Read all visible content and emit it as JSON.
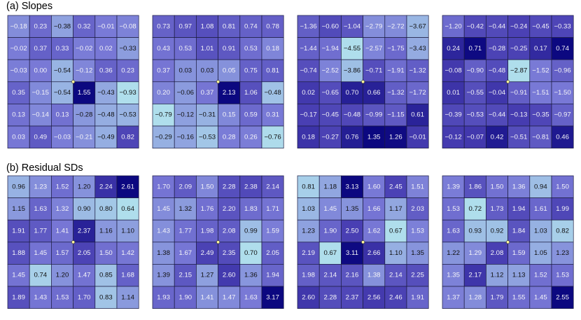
{
  "chart_data": [
    {
      "type": "heatmap",
      "title": "(a) Slopes",
      "panels": [
        {
          "values": [
            [
              "−0.18",
              "0.23",
              "−0.38",
              "0.32",
              "−0.01",
              "−0.08"
            ],
            [
              "−0.02",
              "0.37",
              "0.33",
              "−0.02",
              "0.02",
              "−0.33"
            ],
            [
              "−0.03",
              "0.00",
              "−0.54",
              "−0.12",
              "0.36",
              "0.23"
            ],
            [
              "0.35",
              "−0.15",
              "−0.54",
              "1.55",
              "−0.43",
              "−0.93"
            ],
            [
              "0.13",
              "−0.14",
              "0.13",
              "−0.28",
              "−0.48",
              "−0.53"
            ],
            [
              "0.03",
              "0.49",
              "−0.03",
              "−0.21",
              "−0.49",
              "0.82"
            ]
          ]
        },
        {
          "values": [
            [
              "0.73",
              "0.97",
              "1.08",
              "0.81",
              "0.74",
              "0.78"
            ],
            [
              "0.43",
              "0.53",
              "1.01",
              "0.91",
              "0.53",
              "0.18"
            ],
            [
              "0.37",
              "0.03",
              "0.03",
              "0.05",
              "0.75",
              "0.81"
            ],
            [
              "0.20",
              "−0.06",
              "0.37",
              "2.13",
              "1.06",
              "−0.48"
            ],
            [
              "−0.79",
              "−0.12",
              "−0.31",
              "0.15",
              "0.59",
              "0.31"
            ],
            [
              "−0.29",
              "−0.16",
              "−0.53",
              "0.28",
              "0.26",
              "−0.76"
            ]
          ]
        },
        {
          "values": [
            [
              "−1.36",
              "−0.60",
              "−1.04",
              "−2.79",
              "−2.72",
              "−3.67"
            ],
            [
              "−1.44",
              "−1.94",
              "−4.55",
              "−2.57",
              "−1.75",
              "−3.43"
            ],
            [
              "−0.74",
              "−2.52",
              "−3.86",
              "−0.71",
              "−1.91",
              "−1.32"
            ],
            [
              "0.02",
              "−0.65",
              "0.70",
              "0.66",
              "−1.32",
              "−1.72"
            ],
            [
              "−0.17",
              "−0.45",
              "−0.48",
              "−0.99",
              "−1.15",
              "0.61"
            ],
            [
              "0.18",
              "−0.27",
              "0.76",
              "1.35",
              "1.26",
              "−0.01"
            ]
          ]
        },
        {
          "values": [
            [
              "−1.20",
              "−0.42",
              "−0.44",
              "−0.24",
              "−0.45",
              "−0.33"
            ],
            [
              "0.24",
              "0.71",
              "−0.28",
              "−0.25",
              "0.17",
              "0.74"
            ],
            [
              "−0.08",
              "−0.90",
              "−0.48",
              "−2.87",
              "−1.52",
              "−0.96"
            ],
            [
              "0.01",
              "−0.55",
              "−0.04",
              "−0.91",
              "−1.51",
              "−1.50"
            ],
            [
              "−0.39",
              "−0.53",
              "−0.44",
              "−0.13",
              "−0.35",
              "−0.97"
            ],
            [
              "−0.12",
              "−0.07",
              "0.42",
              "−0.51",
              "−0.81",
              "0.46"
            ]
          ]
        }
      ]
    },
    {
      "type": "heatmap",
      "title": "(b) Residual SDs",
      "panels": [
        {
          "values": [
            [
              "0.96",
              "1.23",
              "1.52",
              "1.20",
              "2.24",
              "2.61"
            ],
            [
              "1.15",
              "1.63",
              "1.32",
              "0.90",
              "0.80",
              "0.64"
            ],
            [
              "1.91",
              "1.77",
              "1.41",
              "2.37",
              "1.16",
              "1.10"
            ],
            [
              "1.88",
              "1.45",
              "1.57",
              "2.05",
              "1.50",
              "1.42"
            ],
            [
              "1.45",
              "0.74",
              "1.20",
              "1.47",
              "0.85",
              "1.68"
            ],
            [
              "1.89",
              "1.43",
              "1.53",
              "1.70",
              "0.83",
              "1.14"
            ]
          ]
        },
        {
          "values": [
            [
              "1.70",
              "2.09",
              "1.50",
              "2.28",
              "2.38",
              "2.14"
            ],
            [
              "1.45",
              "1.32",
              "1.76",
              "2.20",
              "1.83",
              "1.71"
            ],
            [
              "1.43",
              "1.77",
              "1.98",
              "2.08",
              "0.99",
              "1.59"
            ],
            [
              "1.38",
              "1.67",
              "2.49",
              "2.35",
              "0.70",
              "2.05"
            ],
            [
              "1.39",
              "2.15",
              "1.27",
              "2.60",
              "1.36",
              "1.94"
            ],
            [
              "1.93",
              "1.90",
              "1.41",
              "1.47",
              "1.63",
              "3.17"
            ]
          ]
        },
        {
          "values": [
            [
              "0.81",
              "1.18",
              "3.13",
              "1.60",
              "2.45",
              "1.51"
            ],
            [
              "1.03",
              "1.45",
              "1.35",
              "1.66",
              "1.17",
              "2.03"
            ],
            [
              "1.23",
              "1.90",
              "2.50",
              "1.62",
              "0.67",
              "1.53"
            ],
            [
              "2.19",
              "0.67",
              "3.11",
              "2.66",
              "1.10",
              "1.35"
            ],
            [
              "1.98",
              "2.14",
              "2.16",
              "1.38",
              "2.14",
              "2.25"
            ],
            [
              "2.60",
              "2.28",
              "2.37",
              "2.56",
              "2.46",
              "1.91"
            ]
          ]
        },
        {
          "values": [
            [
              "1.39",
              "1.86",
              "1.50",
              "1.36",
              "0.94",
              "1.50"
            ],
            [
              "1.53",
              "0.72",
              "1.73",
              "1.94",
              "1.61",
              "1.99"
            ],
            [
              "1.63",
              "0.93",
              "0.92",
              "1.84",
              "1.03",
              "0.82"
            ],
            [
              "1.22",
              "1.29",
              "2.08",
              "1.59",
              "1.05",
              "1.23"
            ],
            [
              "1.35",
              "2.17",
              "1.12",
              "1.13",
              "1.52",
              "1.53"
            ],
            [
              "1.37",
              "1.28",
              "1.79",
              "1.55",
              "1.45",
              "2.55"
            ]
          ]
        }
      ]
    }
  ]
}
